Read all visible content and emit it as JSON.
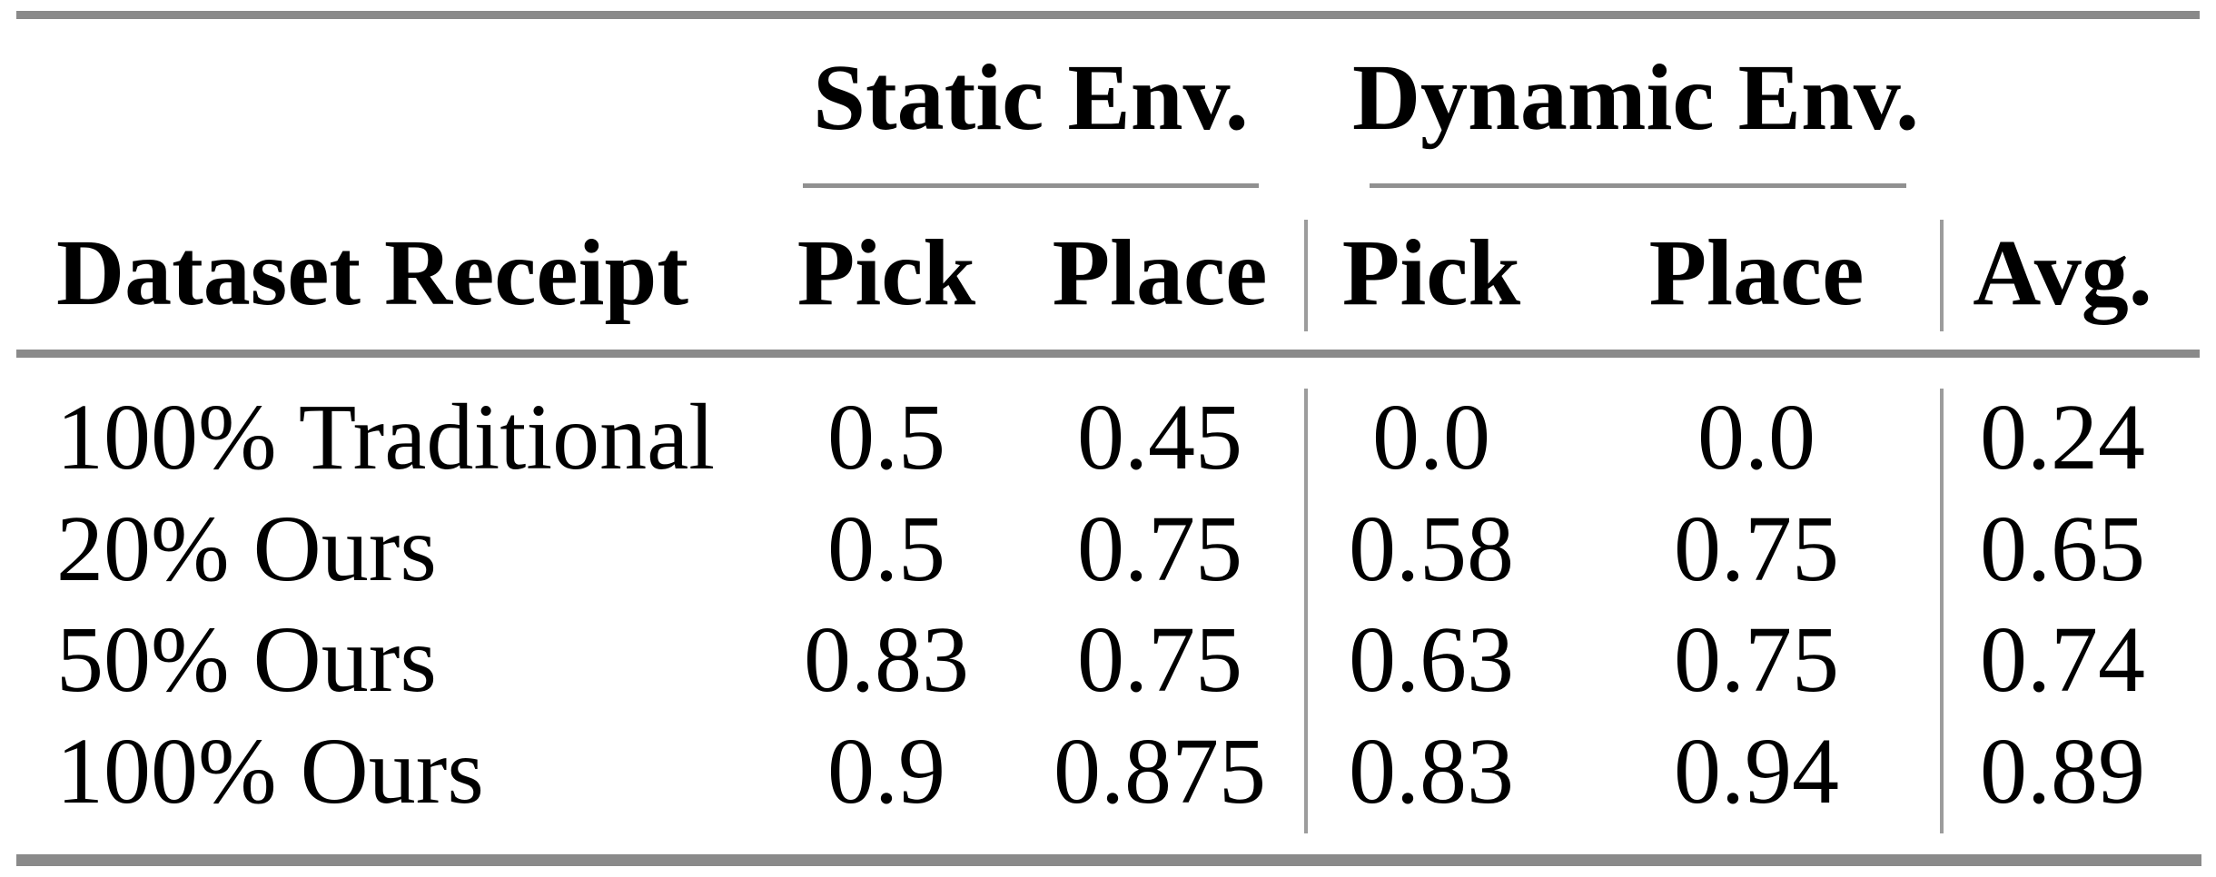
{
  "colors": {
    "background": "#ffffff",
    "text": "#000000",
    "horizontal_rule": "#8a8a8a",
    "vertical_rule": "#9c9c9c"
  },
  "table": {
    "col_groups": [
      {
        "label": "Static Env."
      },
      {
        "label": "Dynamic Env."
      }
    ],
    "headers": {
      "row_label": "Dataset Receipt",
      "static_pick": "Pick",
      "static_place": "Place",
      "dynamic_pick": "Pick",
      "dynamic_place": "Place",
      "avg": "Avg."
    },
    "rows": [
      {
        "label": "100% Traditional",
        "static_pick": "0.5",
        "static_place": "0.45",
        "dynamic_pick": "0.0",
        "dynamic_place": "0.0",
        "avg": "0.24"
      },
      {
        "label": "20% Ours",
        "static_pick": "0.5",
        "static_place": "0.75",
        "dynamic_pick": "0.58",
        "dynamic_place": "0.75",
        "avg": "0.65"
      },
      {
        "label": "50% Ours",
        "static_pick": "0.83",
        "static_place": "0.75",
        "dynamic_pick": "0.63",
        "dynamic_place": "0.75",
        "avg": "0.74"
      },
      {
        "label": "100% Ours",
        "static_pick": "0.9",
        "static_place": "0.875",
        "dynamic_pick": "0.83",
        "dynamic_place": "0.94",
        "avg": "0.89"
      }
    ]
  },
  "chart_data": {
    "type": "table",
    "title": "",
    "column_groups": [
      "Static Env.",
      "Dynamic Env."
    ],
    "columns": [
      "Dataset Receipt",
      "Static Env. Pick",
      "Static Env. Place",
      "Dynamic Env. Pick",
      "Dynamic Env. Place",
      "Avg."
    ],
    "rows": [
      [
        "100% Traditional",
        0.5,
        0.45,
        0.0,
        0.0,
        0.24
      ],
      [
        "20% Ours",
        0.5,
        0.75,
        0.58,
        0.75,
        0.65
      ],
      [
        "50% Ours",
        0.83,
        0.75,
        0.63,
        0.75,
        0.74
      ],
      [
        "100% Ours",
        0.9,
        0.875,
        0.83,
        0.94,
        0.89
      ]
    ]
  }
}
